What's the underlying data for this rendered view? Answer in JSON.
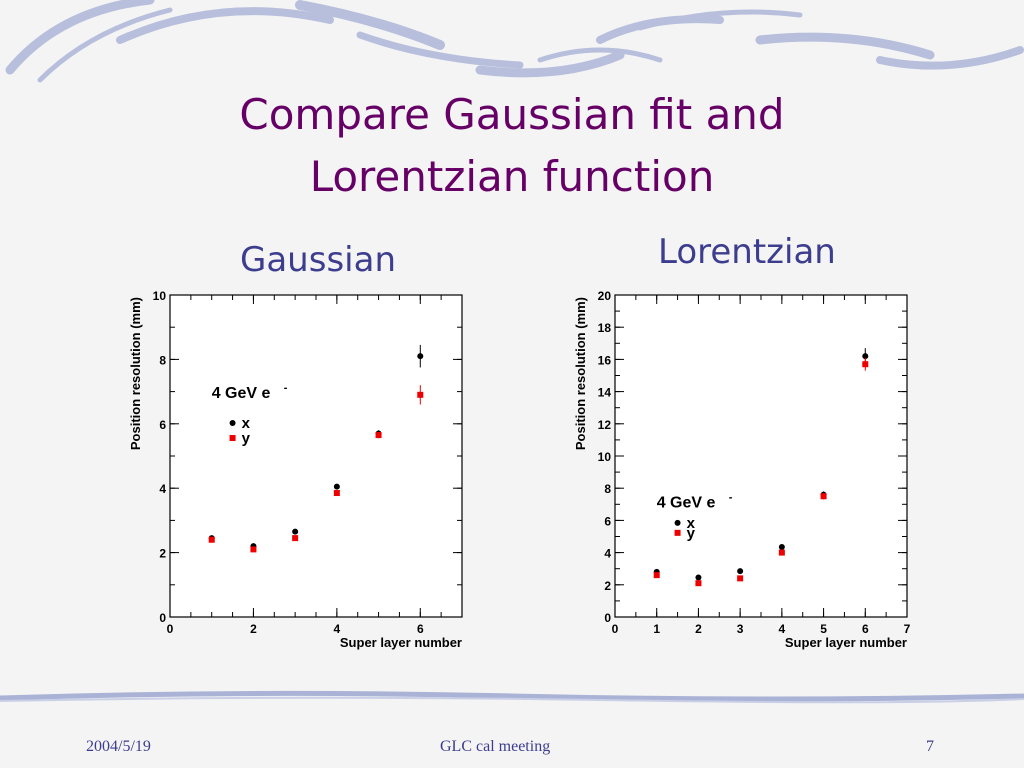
{
  "slide": {
    "title_line1": "Compare Gaussian fit and",
    "title_line2": "Lorentzian function",
    "subtitle_left": "Gaussian",
    "subtitle_right": "Lorentzian"
  },
  "footer": {
    "date": "2004/5/19",
    "center": "GLC cal meeting",
    "page": "7"
  },
  "colors": {
    "title": "#660066",
    "subtitle": "#3d3d8f",
    "series_x": "#000000",
    "series_y": "#ee0000"
  },
  "chart_data": [
    {
      "type": "scatter",
      "title": "",
      "xlabel": "Super layer number",
      "ylabel": "Position resolution (mm)",
      "xlim": [
        0,
        7
      ],
      "ylim": [
        0,
        10
      ],
      "xticks": [
        0,
        2,
        4,
        6
      ],
      "yticks": [
        0,
        2,
        4,
        6,
        8,
        10
      ],
      "annotation": "4 GeV e",
      "annotation_sup": "-",
      "grid": false,
      "series": [
        {
          "name": "x",
          "x": [
            1,
            2,
            3,
            4,
            5,
            6
          ],
          "y": [
            2.45,
            2.2,
            2.65,
            4.05,
            5.7,
            8.1
          ],
          "err": [
            0.05,
            0.05,
            0.05,
            0.08,
            0.1,
            0.35
          ]
        },
        {
          "name": "y",
          "x": [
            1,
            2,
            3,
            4,
            5,
            6
          ],
          "y": [
            2.4,
            2.1,
            2.45,
            3.85,
            5.65,
            6.9
          ],
          "err": [
            0.05,
            0.05,
            0.05,
            0.08,
            0.1,
            0.3
          ]
        }
      ]
    },
    {
      "type": "scatter",
      "title": "",
      "xlabel": "Super layer number",
      "ylabel": "Position resolution (mm)",
      "xlim": [
        0,
        7
      ],
      "ylim": [
        0,
        20
      ],
      "xticks": [
        0,
        1,
        2,
        3,
        4,
        5,
        6,
        7
      ],
      "yticks": [
        0,
        2,
        4,
        6,
        8,
        10,
        12,
        14,
        16,
        18,
        20
      ],
      "annotation": "4 GeV e",
      "annotation_sup": "-",
      "grid": false,
      "series": [
        {
          "name": "x",
          "x": [
            1,
            2,
            3,
            4,
            5,
            6
          ],
          "y": [
            2.8,
            2.45,
            2.85,
            4.35,
            7.6,
            16.2
          ],
          "err": [
            0.1,
            0.1,
            0.1,
            0.15,
            0.2,
            0.5
          ]
        },
        {
          "name": "y",
          "x": [
            1,
            2,
            3,
            4,
            5,
            6
          ],
          "y": [
            2.6,
            2.1,
            2.4,
            4.0,
            7.5,
            15.7
          ],
          "err": [
            0.1,
            0.1,
            0.1,
            0.15,
            0.2,
            0.4
          ]
        }
      ]
    }
  ]
}
